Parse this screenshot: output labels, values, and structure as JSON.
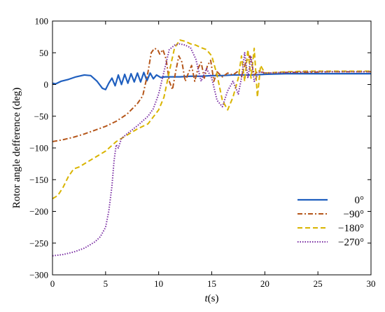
{
  "chart_data": {
    "type": "line",
    "title": "",
    "xlabel_italic": "t",
    "xlabel_rest": "(s)",
    "ylabel": "Rotor angle defference (deg)",
    "xlim": [
      0,
      30
    ],
    "ylim": [
      -300,
      100
    ],
    "xticks": [
      0,
      5,
      10,
      15,
      20,
      25,
      30
    ],
    "yticks": [
      -300,
      -250,
      -200,
      -150,
      -100,
      -50,
      0,
      50,
      100
    ],
    "grid": false,
    "legend_position": "lower-right",
    "series": [
      {
        "name": "0°",
        "color": "#1f5fbf",
        "dash": "solid",
        "x": [
          0,
          0.3,
          0.8,
          1.5,
          2.2,
          3.0,
          3.6,
          4.2,
          4.7,
          5.0,
          5.3,
          5.6,
          5.9,
          6.2,
          6.5,
          6.8,
          7.1,
          7.4,
          7.7,
          8.0,
          8.3,
          8.6,
          8.9,
          9.2,
          9.5,
          9.8,
          10.2,
          10.6,
          11.0,
          11.5,
          12,
          13,
          14,
          15,
          16,
          17,
          18,
          19,
          20,
          22,
          24,
          26,
          28,
          30
        ],
        "y": [
          2,
          1,
          5,
          8,
          12,
          15,
          14,
          5,
          -6,
          -8,
          2,
          10,
          -2,
          15,
          0,
          16,
          2,
          17,
          4,
          18,
          4,
          19,
          6,
          18,
          9,
          15,
          11,
          12,
          12,
          12,
          12,
          13,
          13,
          14,
          14,
          15,
          15,
          15,
          16,
          17,
          17,
          17,
          17,
          17
        ]
      },
      {
        "name": "−90°",
        "color": "#b5561a",
        "dash": "dashdot",
        "x": [
          0,
          1,
          2,
          3,
          4,
          5,
          6,
          7,
          8,
          8.5,
          9,
          9.3,
          9.6,
          9.9,
          10.1,
          10.4,
          10.7,
          11.0,
          11.3,
          11.6,
          11.9,
          12.2,
          12.5,
          12.8,
          13.1,
          13.4,
          13.7,
          14.0,
          14.3,
          14.6,
          14.9,
          15.2,
          15.5,
          16,
          16.5,
          17,
          17.4,
          17.8,
          18.2,
          18.6,
          19.0,
          19.4,
          20,
          22,
          24,
          26,
          28,
          30
        ],
        "y": [
          -90,
          -87,
          -83,
          -78,
          -72,
          -66,
          -58,
          -47,
          -30,
          -18,
          20,
          50,
          57,
          55,
          48,
          55,
          40,
          5,
          -8,
          20,
          45,
          35,
          5,
          18,
          30,
          5,
          25,
          35,
          10,
          30,
          38,
          5,
          20,
          12,
          18,
          15,
          20,
          12,
          35,
          45,
          15,
          22,
          18,
          19,
          19,
          20,
          20,
          20
        ]
      },
      {
        "name": "−180°",
        "color": "#d9b400",
        "dash": "dashed",
        "x": [
          0,
          0.5,
          1.0,
          1.5,
          2.0,
          2.5,
          3,
          4,
          5,
          6,
          7,
          8,
          9,
          10,
          10.5,
          11.0,
          11.5,
          12,
          12.5,
          13.0,
          13.5,
          14.0,
          14.5,
          15.0,
          15.5,
          16.0,
          16.5,
          17.0,
          17.5,
          17.8,
          18.1,
          18.4,
          18.7,
          19.0,
          19.3,
          19.6,
          20,
          22,
          24,
          26,
          28,
          30
        ],
        "y": [
          -180,
          -175,
          -162,
          -145,
          -133,
          -130,
          -125,
          -115,
          -105,
          -90,
          -80,
          -70,
          -62,
          -40,
          -20,
          20,
          58,
          70,
          68,
          64,
          62,
          58,
          55,
          45,
          15,
          -25,
          -40,
          -20,
          10,
          45,
          5,
          55,
          10,
          57,
          -20,
          30,
          18,
          20,
          21,
          21,
          21,
          21
        ]
      },
      {
        "name": "−270°",
        "color": "#7a2ea3",
        "dash": "dotted",
        "x": [
          0,
          1,
          2,
          3,
          4,
          4.5,
          5,
          5.3,
          5.6,
          5.8,
          6.0,
          6.2,
          6.5,
          7,
          8,
          9,
          9.5,
          10,
          10.5,
          11,
          11.5,
          12,
          12.5,
          13,
          13.5,
          14,
          14.5,
          15,
          15.5,
          16,
          16.5,
          17,
          17.5,
          17.8,
          18.1,
          18.4,
          18.7,
          19.0,
          19.5,
          20,
          22,
          24,
          26,
          28,
          30
        ],
        "y": [
          -270,
          -268,
          -264,
          -258,
          -248,
          -240,
          -225,
          -200,
          -160,
          -120,
          -95,
          -100,
          -85,
          -78,
          -65,
          -50,
          -38,
          -15,
          20,
          55,
          62,
          64,
          62,
          58,
          40,
          5,
          25,
          10,
          -25,
          -35,
          -10,
          5,
          -15,
          10,
          50,
          10,
          45,
          5,
          20,
          18,
          19,
          20,
          20,
          20,
          20
        ]
      }
    ]
  }
}
